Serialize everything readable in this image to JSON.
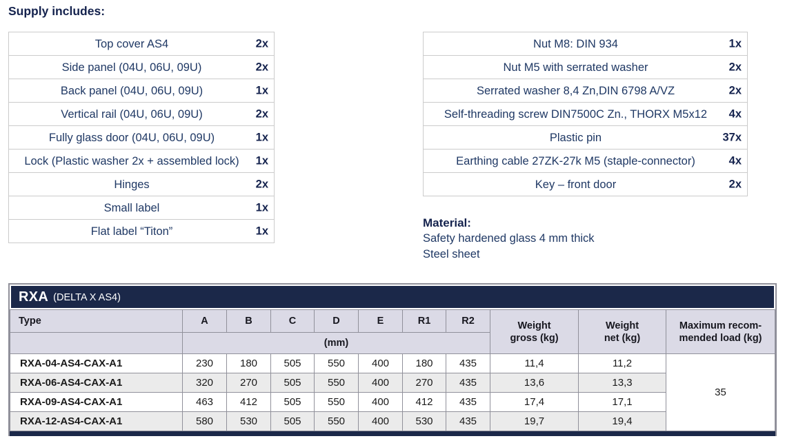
{
  "supply": {
    "heading": "Supply includes:",
    "left_items": [
      {
        "name": "Top cover AS4",
        "qty": "2x"
      },
      {
        "name": "Side panel (04U, 06U, 09U)",
        "qty": "2x"
      },
      {
        "name": "Back panel (04U, 06U, 09U)",
        "qty": "1x"
      },
      {
        "name": "Vertical rail (04U, 06U, 09U)",
        "qty": "2x"
      },
      {
        "name": "Fully glass door (04U, 06U, 09U)",
        "qty": "1x"
      },
      {
        "name": "Lock (Plastic washer 2x + assembled lock)",
        "qty": "1x"
      },
      {
        "name": "Hinges",
        "qty": "2x"
      },
      {
        "name": "Small label",
        "qty": "1x"
      },
      {
        "name": "Flat label “Titon”",
        "qty": "1x"
      }
    ],
    "right_items": [
      {
        "name": "Nut M8: DIN 934",
        "qty": "1x"
      },
      {
        "name": "Nut M5 with serrated washer",
        "qty": "2x"
      },
      {
        "name": "Serrated washer 8,4 Zn,DIN 6798 A/VZ",
        "qty": "2x"
      },
      {
        "name": "Self-threading screw DIN7500C Zn., THORX M5x12",
        "qty": "4x"
      },
      {
        "name": "Plastic pin",
        "qty": "37x"
      },
      {
        "name": "Earthing cable 27ZK-27k M5 (staple-connector)",
        "qty": "4x"
      },
      {
        "name": "Key – front door",
        "qty": "2x"
      }
    ]
  },
  "material": {
    "heading": "Material:",
    "lines": [
      "Safety hardened glass 4 mm thick",
      "Steel sheet"
    ]
  },
  "spec": {
    "title": "RXA",
    "subtitle": "(DELTA X AS4)",
    "col_type": "Type",
    "dim_cols": [
      "A",
      "B",
      "C",
      "D",
      "E",
      "R1",
      "R2"
    ],
    "dim_unit": "(mm)",
    "col_weight_gross": [
      "Weight",
      "gross (kg)"
    ],
    "col_weight_net": [
      "Weight",
      "net (kg)"
    ],
    "col_max_load": [
      "Maximum recom-",
      "mended load (kg)"
    ],
    "rows": [
      {
        "type": "RXA-04-AS4-CAX-A1",
        "dims": [
          "230",
          "180",
          "505",
          "550",
          "400",
          "180",
          "435"
        ],
        "gross": "11,4",
        "net": "11,2"
      },
      {
        "type": "RXA-06-AS4-CAX-A1",
        "dims": [
          "320",
          "270",
          "505",
          "550",
          "400",
          "270",
          "435"
        ],
        "gross": "13,6",
        "net": "13,3"
      },
      {
        "type": "RXA-09-AS4-CAX-A1",
        "dims": [
          "463",
          "412",
          "505",
          "550",
          "400",
          "412",
          "435"
        ],
        "gross": "17,4",
        "net": "17,1"
      },
      {
        "type": "RXA-12-AS4-CAX-A1",
        "dims": [
          "580",
          "530",
          "505",
          "550",
          "400",
          "530",
          "435"
        ],
        "gross": "19,7",
        "net": "19,4"
      }
    ],
    "max_load": "35"
  },
  "colors": {
    "navy_text": "#1f3864",
    "heading_navy": "#15234e",
    "titlebar_navy": "#1b2849",
    "header_row_bg": "#dbdae6",
    "stripe_gray": "#ebebeb",
    "grid_gray": "#90909a",
    "supply_border": "#cbcbcb"
  }
}
